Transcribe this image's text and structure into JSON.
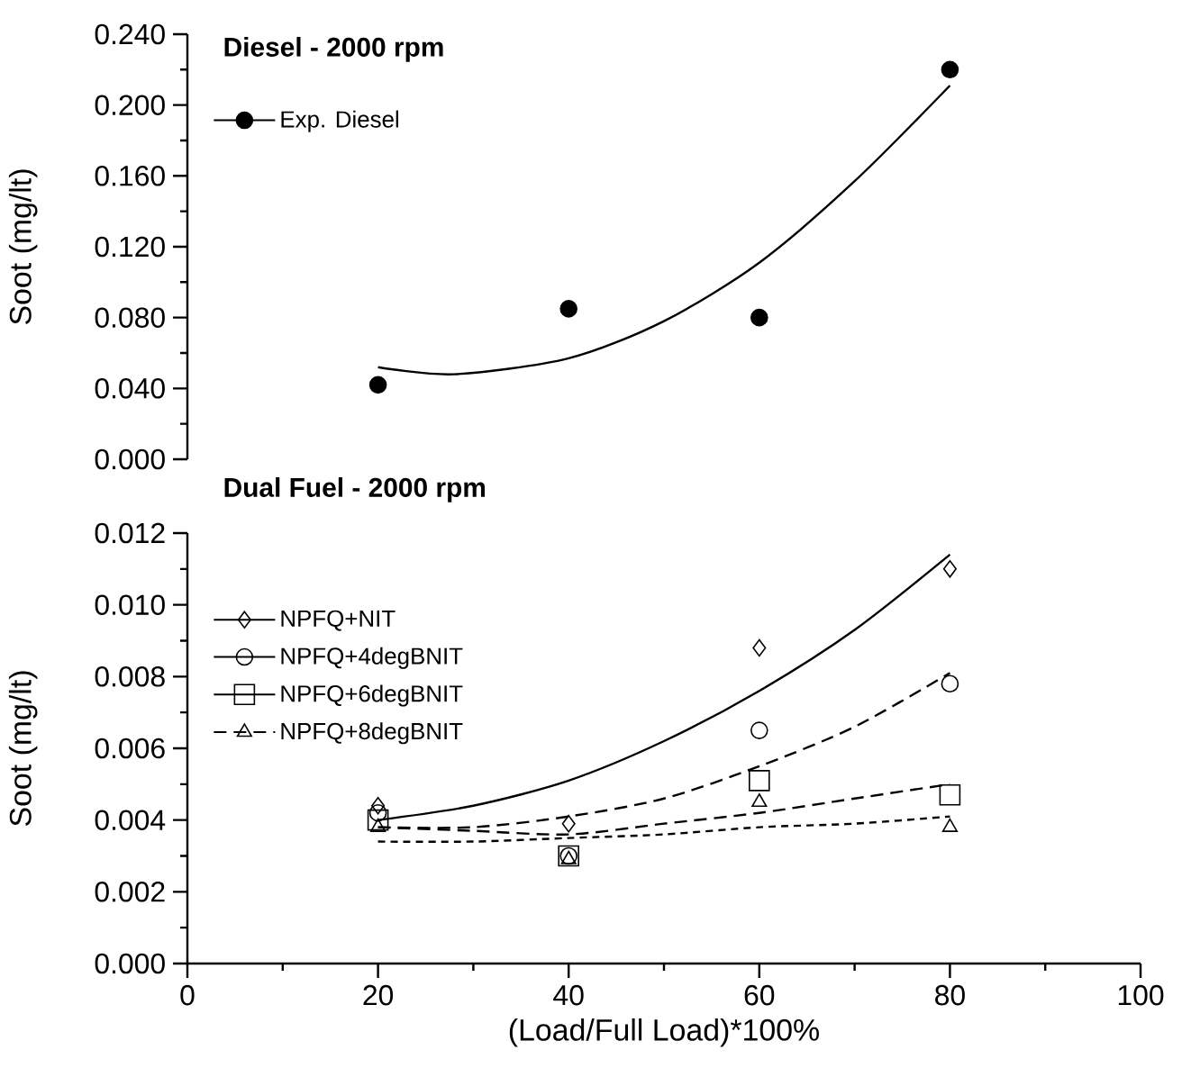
{
  "chart_data": [
    {
      "type": "scatter",
      "title": "Diesel - 2000 rpm",
      "ylabel": "Soot (mg/lt)",
      "xlim": [
        0,
        100
      ],
      "xticks": [
        0,
        20,
        40,
        60,
        80,
        100
      ],
      "ylim": [
        0,
        0.24
      ],
      "yticks": [
        {
          "value": 0,
          "label": "0.000"
        },
        {
          "value": 0.04,
          "label": "0.040"
        },
        {
          "value": 0.08,
          "label": "0.080"
        },
        {
          "value": 0.12,
          "label": "0.120"
        },
        {
          "value": 0.16,
          "label": "0.160"
        },
        {
          "value": 0.2,
          "label": "0.200"
        },
        {
          "value": 0.24,
          "label": "0.240"
        }
      ],
      "tick_labels": "y",
      "legend": "top left",
      "grid": false,
      "series": [
        {
          "name": "Exp. Diesel",
          "type": "scatter",
          "color": "#000000",
          "marker": "circle",
          "line_style": "solid",
          "x": [
            20,
            40,
            60,
            80
          ],
          "values": [
            0.042,
            0.085,
            0.08,
            0.22
          ]
        },
        {
          "type": "line",
          "color": "#000000",
          "marker": "none",
          "line_style": "solid",
          "x": [
            20,
            28,
            40,
            50,
            60,
            70,
            80
          ],
          "values": [
            0.052,
            0.048,
            0.057,
            0.078,
            0.111,
            0.157,
            0.211
          ]
        }
      ]
    },
    {
      "type": "scatter",
      "title": "Dual Fuel - 2000 rpm",
      "xlabel": "(Load/Full Load)*100%",
      "ylabel": "Soot (mg/lt)",
      "xlim": [
        0,
        100
      ],
      "xticks": [
        0,
        20,
        40,
        60,
        80,
        100
      ],
      "ylim": [
        0,
        0.012
      ],
      "yticks": [
        {
          "value": 0,
          "label": "0.000"
        },
        {
          "value": 0.002,
          "label": "0.002"
        },
        {
          "value": 0.004,
          "label": "0.004"
        },
        {
          "value": 0.006,
          "label": "0.006"
        },
        {
          "value": 0.008,
          "label": "0.008"
        },
        {
          "value": 0.01,
          "label": "0.010"
        },
        {
          "value": 0.012,
          "label": "0.012"
        }
      ],
      "legend": "top left",
      "grid": false,
      "series": [
        {
          "name": "NPFQ+NIT",
          "type": "scatter",
          "color": "#000000",
          "marker": "diamond",
          "line_style": "solid",
          "x": [
            20,
            40,
            60,
            80
          ],
          "values": [
            0.0044,
            0.0039,
            0.0088,
            0.011
          ]
        },
        {
          "name": "NPFQ+4degBNIT",
          "type": "scatter",
          "color": "#000000",
          "marker": "circle",
          "line_style": "solid",
          "x": [
            20,
            40,
            60,
            80
          ],
          "values": [
            0.0042,
            0.003,
            0.0065,
            0.0078
          ]
        },
        {
          "name": "NPFQ+6degBNIT",
          "type": "scatter",
          "color": "#000000",
          "marker": "square",
          "line_style": "solid",
          "x": [
            20,
            40,
            60,
            80
          ],
          "values": [
            0.004,
            0.003,
            0.0051,
            0.0047
          ]
        },
        {
          "name": "NPFQ+8degBNIT",
          "type": "scatter",
          "color": "#000000",
          "marker": "triangle",
          "line_style": "dashed",
          "x": [
            20,
            40,
            60,
            80
          ],
          "values": [
            0.0038,
            0.0029,
            0.0045,
            0.0038
          ]
        },
        {
          "type": "line",
          "color": "#000000",
          "marker": "none",
          "line_style": "solid",
          "x": [
            20,
            30,
            40,
            50,
            60,
            70,
            80
          ],
          "values": [
            0.004,
            0.0044,
            0.0051,
            0.0062,
            0.0076,
            0.0093,
            0.0114
          ]
        },
        {
          "type": "line",
          "color": "#000000",
          "marker": "none",
          "line_style": "dashed",
          "x": [
            20,
            30,
            40,
            50,
            60,
            70,
            80
          ],
          "values": [
            0.0038,
            0.0038,
            0.0041,
            0.0046,
            0.0055,
            0.0066,
            0.0081
          ]
        },
        {
          "type": "line",
          "color": "#000000",
          "marker": "none",
          "line_style": "dashed",
          "x": [
            20,
            30,
            40,
            50,
            60,
            70,
            80
          ],
          "values": [
            0.0038,
            0.0037,
            0.0036,
            0.0039,
            0.0042,
            0.0046,
            0.005
          ]
        },
        {
          "type": "line",
          "color": "#000000",
          "marker": "none",
          "line_style": "dotted",
          "x": [
            20,
            30,
            40,
            50,
            60,
            70,
            80
          ],
          "values": [
            0.0034,
            0.0034,
            0.0035,
            0.0036,
            0.0038,
            0.0039,
            0.0041
          ]
        }
      ]
    }
  ]
}
